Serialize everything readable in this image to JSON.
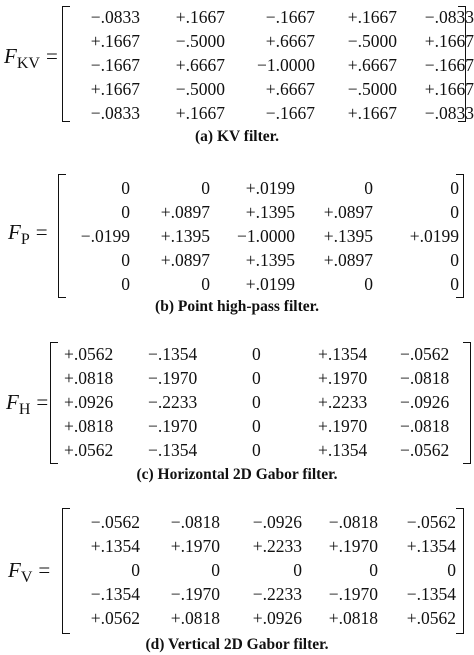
{
  "filters": [
    {
      "id": "kv",
      "symbol": "F",
      "subscript": "KV",
      "equals": "=",
      "caption": "(a) KV filter.",
      "rows": [
        [
          "−.0833",
          "+.1667",
          "−.1667",
          "+.1667",
          "−.0833"
        ],
        [
          "+.1667",
          "−.5000",
          "+.6667",
          "−.5000",
          "+.1667"
        ],
        [
          "−.1667",
          "+.6667",
          "−1.0000",
          "+.6667",
          "−.1667"
        ],
        [
          "+.1667",
          "−.5000",
          "+.6667",
          "−.5000",
          "+.1667"
        ],
        [
          "−.0833",
          "+.1667",
          "−.1667",
          "+.1667",
          "−.0833"
        ]
      ]
    },
    {
      "id": "p",
      "symbol": "F",
      "subscript": "P",
      "equals": "=",
      "caption": "(b) Point high-pass filter.",
      "rows": [
        [
          "0",
          "0",
          "+.0199",
          "0",
          "0"
        ],
        [
          "0",
          "+.0897",
          "+.1395",
          "+.0897",
          "0"
        ],
        [
          "−.0199",
          "+.1395",
          "−1.0000",
          "+.1395",
          "+.0199"
        ],
        [
          "0",
          "+.0897",
          "+.1395",
          "+.0897",
          "0"
        ],
        [
          "0",
          "0",
          "+.0199",
          "0",
          "0"
        ]
      ]
    },
    {
      "id": "h",
      "symbol": "F",
      "subscript": "H",
      "equals": "=",
      "caption": "(c) Horizontal 2D Gabor filter.",
      "rows": [
        [
          "+.0562",
          "−.1354",
          "0",
          "+.1354",
          "−.0562"
        ],
        [
          "+.0818",
          "−.1970",
          "0",
          "+.1970",
          "−.0818"
        ],
        [
          "+.0926",
          "−.2233",
          "0",
          "+.2233",
          "−.0926"
        ],
        [
          "+.0818",
          "−.1970",
          "0",
          "+.1970",
          "−.0818"
        ],
        [
          "+.0562",
          "−.1354",
          "0",
          "+.1354",
          "−.0562"
        ]
      ]
    },
    {
      "id": "v",
      "symbol": "F",
      "subscript": "V",
      "equals": "=",
      "caption": "(d) Vertical 2D Gabor filter.",
      "rows": [
        [
          "−.0562",
          "−.0818",
          "−.0926",
          "−.0818",
          "−.0562"
        ],
        [
          "+.1354",
          "+.1970",
          "+.2233",
          "+.1970",
          "+.1354"
        ],
        [
          "0",
          "0",
          "0",
          "0",
          "0"
        ],
        [
          "−.1354",
          "−.1970",
          "−.2233",
          "−.1970",
          "−.1354"
        ],
        [
          "+.0562",
          "+.0818",
          "+.0926",
          "+.0818",
          "+.0562"
        ]
      ]
    }
  ]
}
